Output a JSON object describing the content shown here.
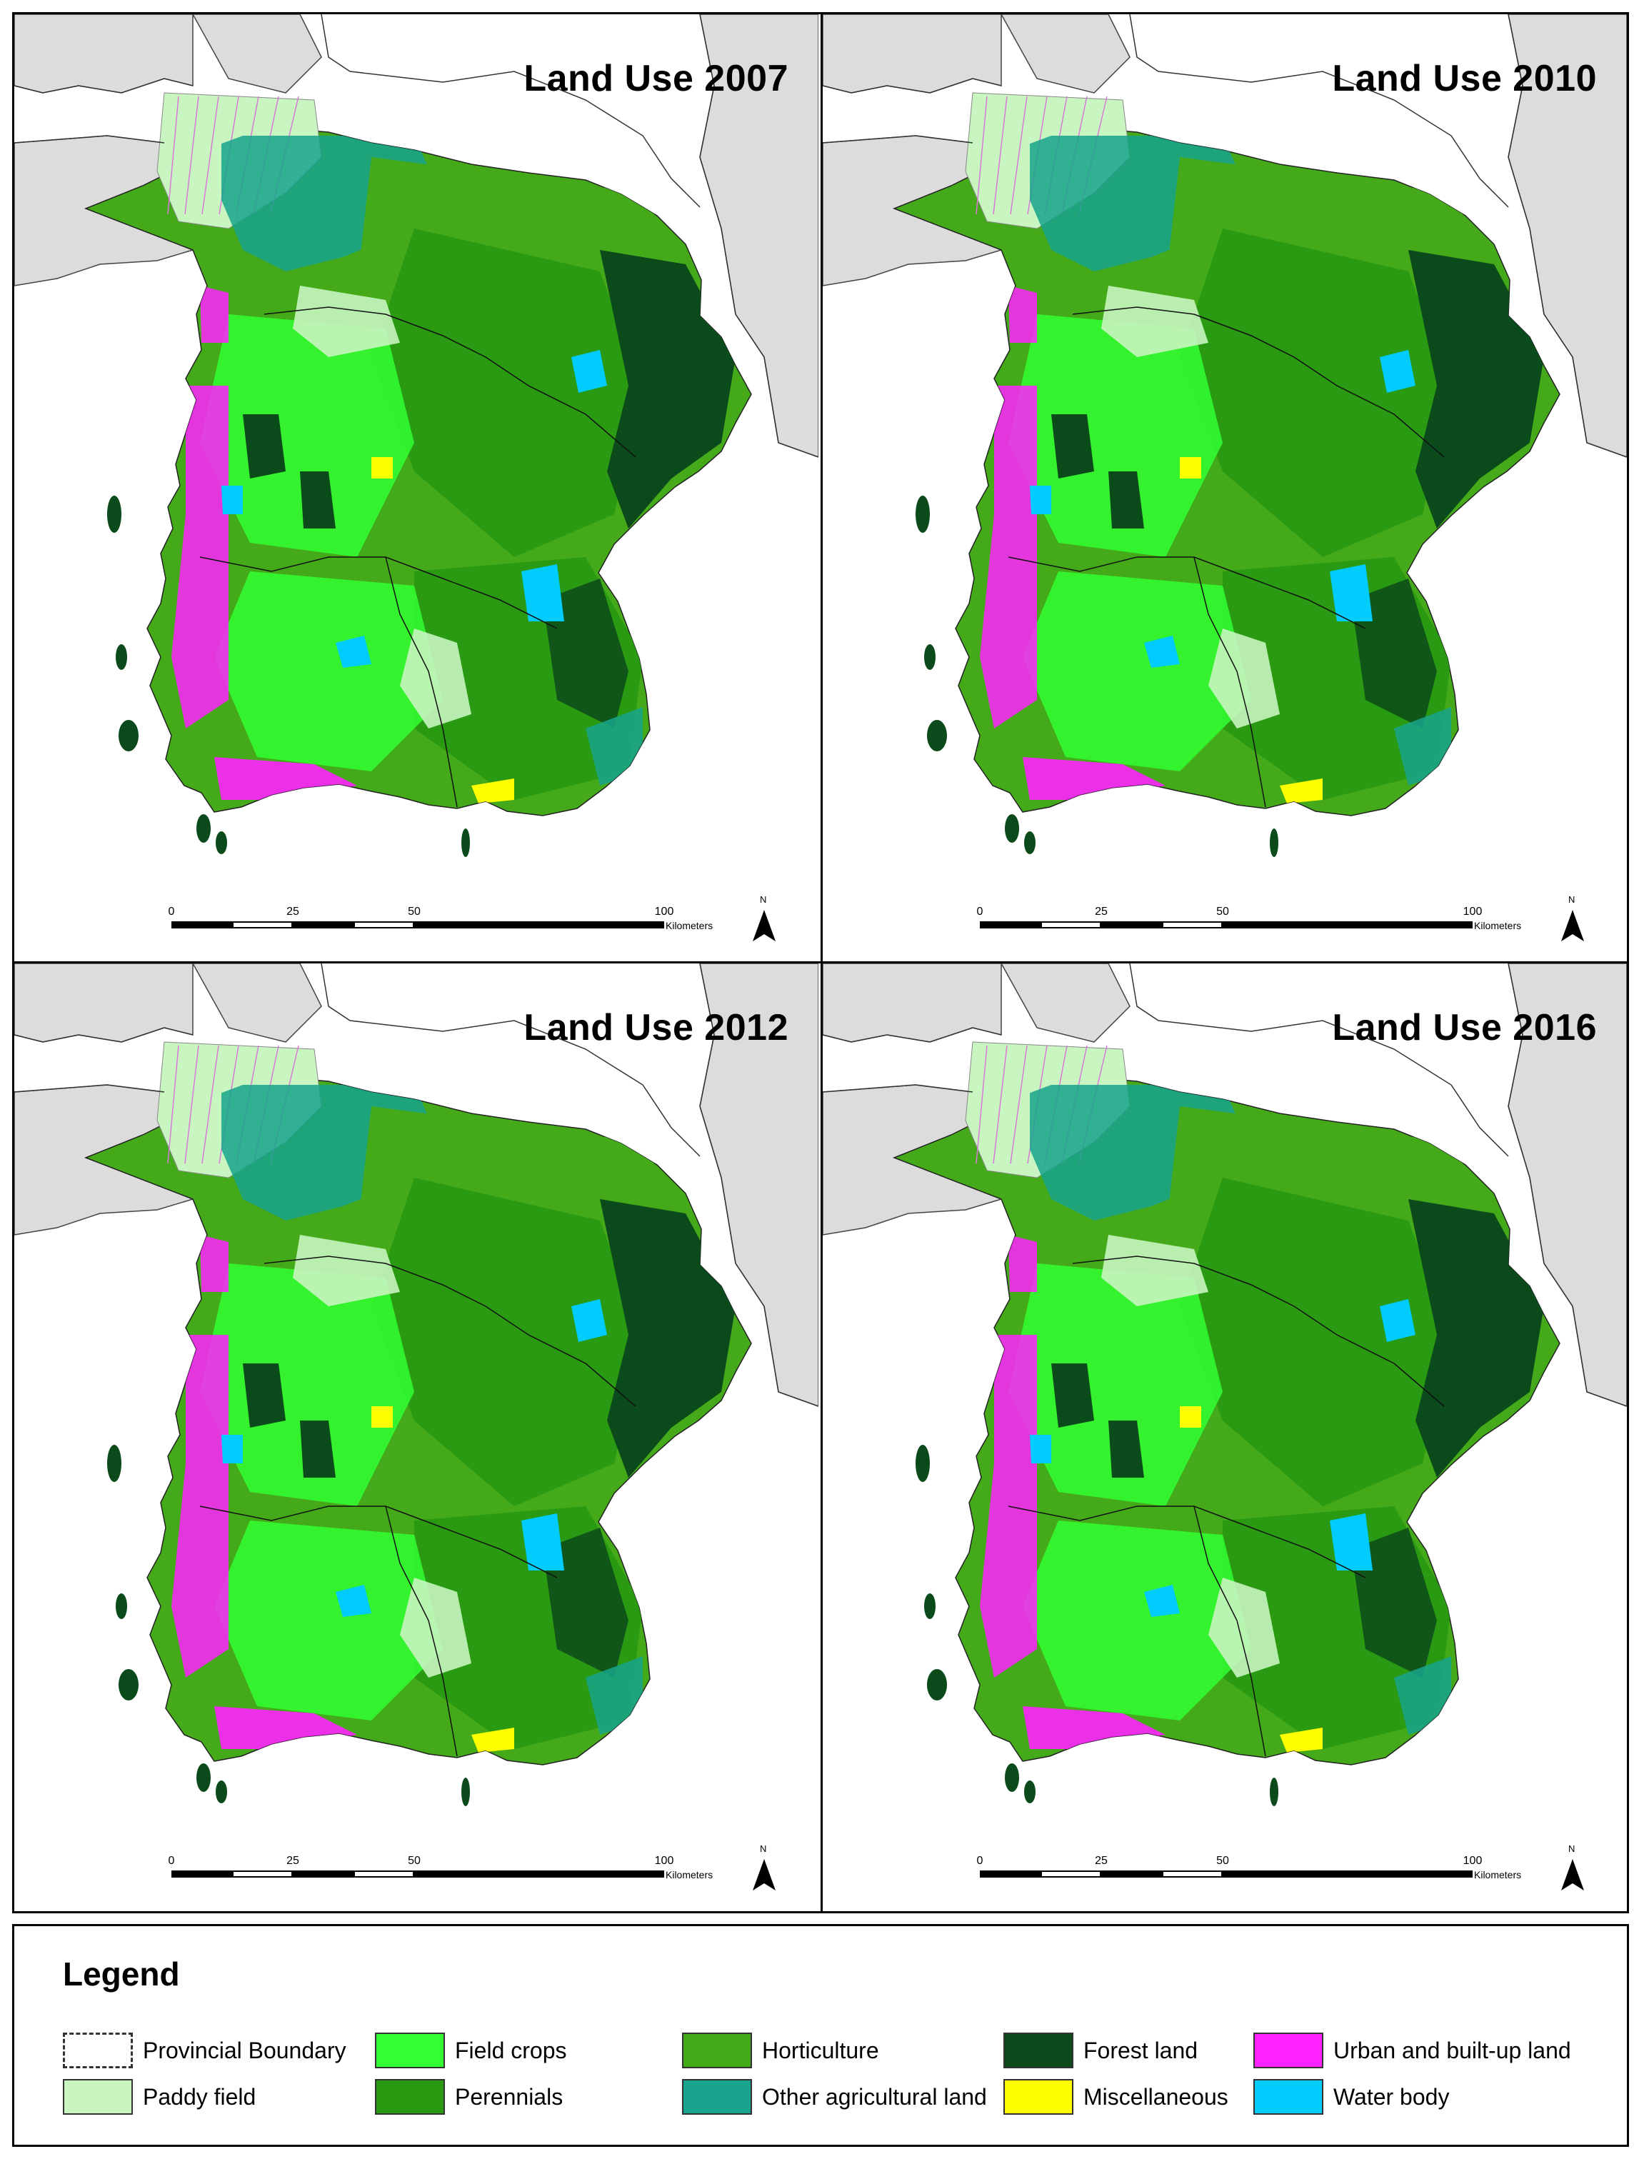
{
  "panels": [
    {
      "title": "Land Use 2007"
    },
    {
      "title": "Land Use 2010"
    },
    {
      "title": "Land Use 2012"
    },
    {
      "title": "Land Use 2016"
    }
  ],
  "scale_bar": {
    "ticks": [
      "0",
      "25",
      "50",
      "100"
    ],
    "unit": "Kilometers"
  },
  "north_label": "N",
  "legend": {
    "title": "Legend",
    "items": [
      {
        "label": "Provincial Boundary",
        "color": "#ffffff",
        "style": "dashed"
      },
      {
        "label": "Paddy field",
        "color": "#c8f5c0"
      },
      {
        "label": "Field crops",
        "color": "#33ff33"
      },
      {
        "label": "Perennials",
        "color": "#2a9a12"
      },
      {
        "label": "Horticulture",
        "color": "#44aa1a"
      },
      {
        "label": "Other agricultural land",
        "color": "#17a38c"
      },
      {
        "label": "Forest land",
        "color": "#0b4a1a"
      },
      {
        "label": "Miscellaneous",
        "color": "#ffff00"
      },
      {
        "label": "Urban and built-up land",
        "color": "#ff22ff"
      },
      {
        "label": "Water body",
        "color": "#00ccff"
      }
    ]
  }
}
